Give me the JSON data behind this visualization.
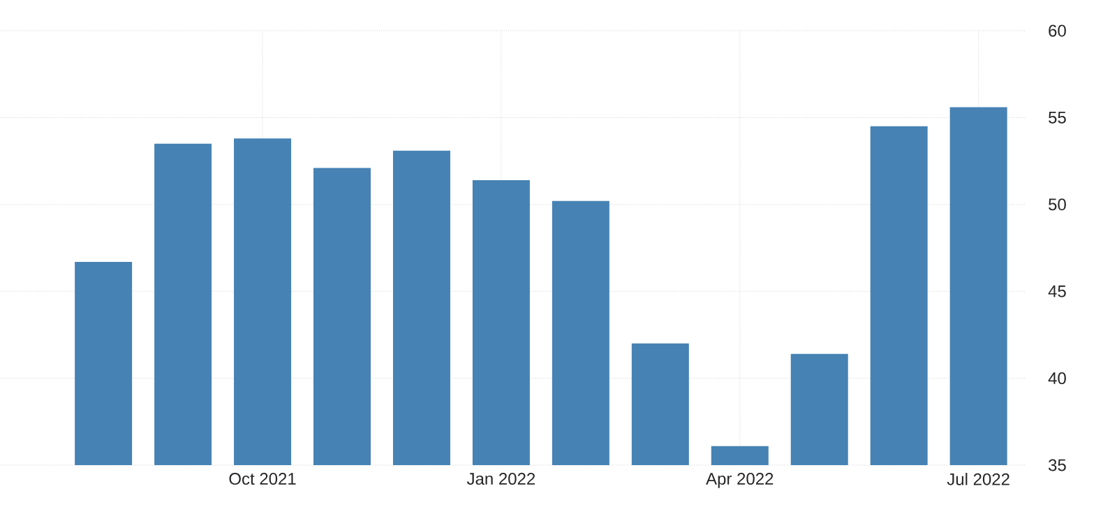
{
  "chart_data": {
    "type": "bar",
    "categories": [
      null,
      null,
      "Oct 2021",
      null,
      null,
      "Jan 2022",
      null,
      null,
      "Apr 2022",
      null,
      null,
      "Jul 2022"
    ],
    "values": [
      46.7,
      53.5,
      53.8,
      52.1,
      53.1,
      51.4,
      50.2,
      42.0,
      36.1,
      41.4,
      54.5,
      55.6
    ],
    "color": "#4682b4",
    "ylim": [
      35,
      60
    ],
    "yticks": [
      35,
      40,
      45,
      50,
      55,
      60
    ],
    "grid": true
  }
}
